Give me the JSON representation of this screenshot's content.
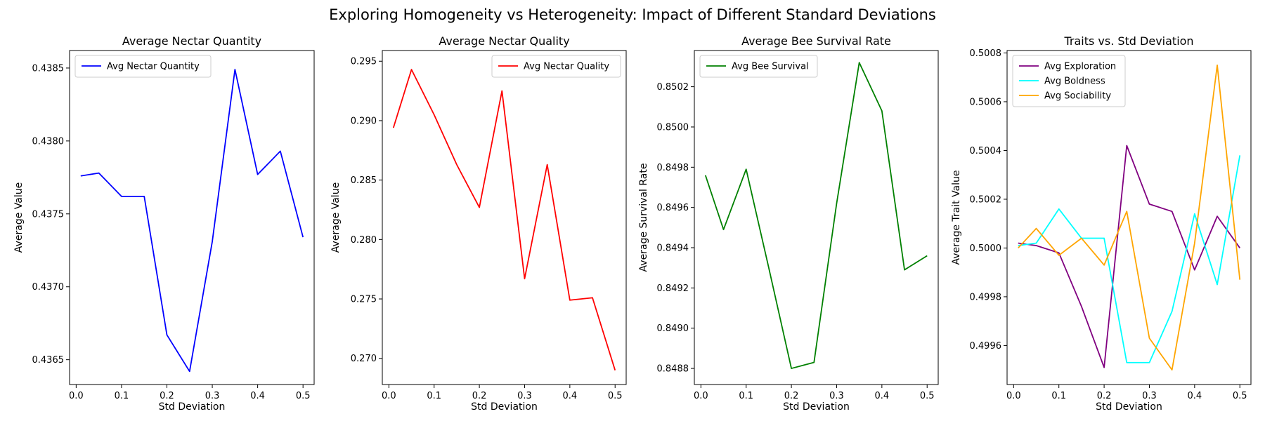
{
  "figure": {
    "title": "Exploring Homogeneity vs Heterogeneity: Impact of Different Standard Deviations"
  },
  "chart_data": [
    {
      "type": "line",
      "title": "Average Nectar Quantity",
      "xlabel": "Std Deviation",
      "ylabel": "Average Value",
      "x": [
        0.01,
        0.05,
        0.1,
        0.15,
        0.2,
        0.25,
        0.3,
        0.35,
        0.4,
        0.45,
        0.5
      ],
      "xlim": [
        -0.0145,
        0.5245
      ],
      "ylim": [
        0.43633,
        0.43862
      ],
      "xticks": [
        0.0,
        0.1,
        0.2,
        0.3,
        0.4,
        0.5
      ],
      "xtick_labels": [
        "0.0",
        "0.1",
        "0.2",
        "0.3",
        "0.4",
        "0.5"
      ],
      "yticks": [
        0.4365,
        0.437,
        0.4375,
        0.438,
        0.4385
      ],
      "ytick_labels": [
        "0.4365",
        "0.4370",
        "0.4375",
        "0.4380",
        "0.4385"
      ],
      "legend_position": "upper-left",
      "series": [
        {
          "name": "Avg Nectar Quantity",
          "color": "#0000ff",
          "values": [
            0.43776,
            0.43778,
            0.43762,
            0.43762,
            0.43667,
            0.43642,
            0.43731,
            0.43849,
            0.43777,
            0.43793,
            0.43734
          ]
        }
      ]
    },
    {
      "type": "line",
      "title": "Average Nectar Quality",
      "xlabel": "Std Deviation",
      "ylabel": "Average Value",
      "x": [
        0.01,
        0.05,
        0.1,
        0.15,
        0.2,
        0.25,
        0.3,
        0.35,
        0.4,
        0.45,
        0.5
      ],
      "xlim": [
        -0.0145,
        0.5245
      ],
      "ylim": [
        0.2678,
        0.2959
      ],
      "xticks": [
        0.0,
        0.1,
        0.2,
        0.3,
        0.4,
        0.5
      ],
      "xtick_labels": [
        "0.0",
        "0.1",
        "0.2",
        "0.3",
        "0.4",
        "0.5"
      ],
      "yticks": [
        0.27,
        0.275,
        0.28,
        0.285,
        0.29,
        0.295
      ],
      "ytick_labels": [
        "0.270",
        "0.275",
        "0.280",
        "0.285",
        "0.290",
        "0.295"
      ],
      "legend_position": "upper-right",
      "series": [
        {
          "name": "Avg Nectar Quality",
          "color": "#ff0000",
          "values": [
            0.2894,
            0.2943,
            0.2905,
            0.2863,
            0.2827,
            0.2925,
            0.2767,
            0.2863,
            0.2749,
            0.2751,
            0.269
          ]
        }
      ]
    },
    {
      "type": "line",
      "title": "Average Bee Survival Rate",
      "xlabel": "Std Deviation",
      "ylabel": "Average Survival Rate",
      "x": [
        0.01,
        0.05,
        0.1,
        0.15,
        0.2,
        0.25,
        0.3,
        0.35,
        0.4,
        0.45,
        0.5
      ],
      "xlim": [
        -0.0145,
        0.5245
      ],
      "ylim": [
        0.84872,
        0.85038
      ],
      "xticks": [
        0.0,
        0.1,
        0.2,
        0.3,
        0.4,
        0.5
      ],
      "xtick_labels": [
        "0.0",
        "0.1",
        "0.2",
        "0.3",
        "0.4",
        "0.5"
      ],
      "yticks": [
        0.8488,
        0.849,
        0.8492,
        0.8494,
        0.8496,
        0.8498,
        0.85,
        0.8502
      ],
      "ytick_labels": [
        "0.8488",
        "0.8490",
        "0.8492",
        "0.8494",
        "0.8496",
        "0.8498",
        "0.8500",
        "0.8502"
      ],
      "legend_position": "upper-left",
      "series": [
        {
          "name": "Avg Bee Survival",
          "color": "#008000",
          "values": [
            0.84976,
            0.84949,
            0.84979,
            0.8493,
            0.8488,
            0.84883,
            0.84962,
            0.85032,
            0.85008,
            0.84929,
            0.84936
          ]
        }
      ]
    },
    {
      "type": "line",
      "title": "Traits vs. Std Deviation",
      "xlabel": "Std Deviation",
      "ylabel": "Average Trait Value",
      "x": [
        0.01,
        0.05,
        0.1,
        0.15,
        0.2,
        0.25,
        0.3,
        0.35,
        0.4,
        0.45,
        0.5
      ],
      "xlim": [
        -0.0145,
        0.5245
      ],
      "ylim": [
        0.49944,
        0.50081
      ],
      "xticks": [
        0.0,
        0.1,
        0.2,
        0.3,
        0.4,
        0.5
      ],
      "xtick_labels": [
        "0.0",
        "0.1",
        "0.2",
        "0.3",
        "0.4",
        "0.5"
      ],
      "yticks": [
        0.4996,
        0.4998,
        0.5,
        0.5002,
        0.5004,
        0.5006,
        0.5008
      ],
      "ytick_labels": [
        "0.4996",
        "0.4998",
        "0.5000",
        "0.5002",
        "0.5004",
        "0.5006",
        "0.5008"
      ],
      "legend_position": "upper-left",
      "series": [
        {
          "name": "Avg Exploration",
          "color": "#800080",
          "values": [
            0.50002,
            0.50001,
            0.49998,
            0.49976,
            0.49951,
            0.50042,
            0.50018,
            0.50015,
            0.49991,
            0.50013,
            0.5
          ]
        },
        {
          "name": "Avg Boldness",
          "color": "#00ffff",
          "values": [
            0.50001,
            0.50002,
            0.50016,
            0.50004,
            0.50004,
            0.49953,
            0.49953,
            0.49974,
            0.50014,
            0.49985,
            0.50038
          ]
        },
        {
          "name": "Avg Sociability",
          "color": "#ffa500",
          "values": [
            0.5,
            0.50008,
            0.49997,
            0.50004,
            0.49993,
            0.50015,
            0.49963,
            0.4995,
            0.50002,
            0.50075,
            0.49987
          ]
        }
      ]
    }
  ]
}
